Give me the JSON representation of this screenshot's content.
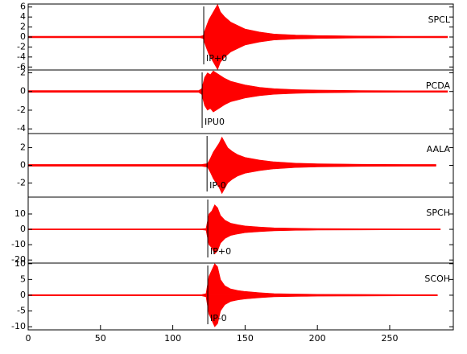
{
  "chart_data": [
    {
      "type": "seismogram",
      "station": "SPCL",
      "pick_label": "IP+0",
      "pick_x": 121.4,
      "color": "#ff0000",
      "ylim": [
        -6.6,
        6.6
      ],
      "yticks": [
        -6,
        -4,
        -2,
        0,
        2,
        4,
        6
      ],
      "x": [
        0,
        60,
        119,
        121,
        123,
        125,
        127,
        129,
        131,
        133,
        136,
        140,
        145,
        150,
        160,
        170,
        185,
        200,
        230,
        260,
        290
      ],
      "values": [
        0.15,
        0.15,
        0.15,
        0.3,
        2,
        3.5,
        4.5,
        5.5,
        6.5,
        5,
        4,
        3,
        2.3,
        1.6,
        1,
        0.6,
        0.4,
        0.3,
        0.2,
        0.15,
        0.15
      ]
    },
    {
      "type": "seismogram",
      "station": "PCDA",
      "pick_label": "IPU0",
      "pick_x": 120.3,
      "color": "#ff0000",
      "ylim": [
        -4.5,
        2.3
      ],
      "yticks": [
        -4,
        -2,
        0,
        2
      ],
      "x": [
        0,
        60,
        118,
        120,
        122,
        124,
        126,
        128,
        130,
        133,
        136,
        140,
        145,
        150,
        160,
        170,
        185,
        200,
        230,
        260,
        290
      ],
      "values": [
        0.1,
        0.1,
        0.1,
        0.3,
        1.5,
        2,
        1.8,
        2.2,
        2,
        1.7,
        1.4,
        1.1,
        0.9,
        0.7,
        0.45,
        0.3,
        0.2,
        0.15,
        0.1,
        0.08,
        0.08
      ]
    },
    {
      "type": "seismogram",
      "station": "AALA",
      "pick_label": "IP-0",
      "pick_x": 123.7,
      "color": "#ff0000",
      "ylim": [
        -3.6,
        3.6
      ],
      "yticks": [
        -2,
        0,
        2
      ],
      "x": [
        0,
        60,
        120,
        124,
        126,
        128,
        130,
        132,
        134,
        136,
        138,
        141,
        145,
        150,
        160,
        170,
        185,
        200,
        230,
        260,
        282
      ],
      "values": [
        0.1,
        0.1,
        0.1,
        0.2,
        0.8,
        1.5,
        2,
        2.5,
        3.2,
        2.6,
        2,
        1.6,
        1.2,
        0.9,
        0.6,
        0.4,
        0.25,
        0.18,
        0.12,
        0.1,
        0.1
      ]
    },
    {
      "type": "seismogram",
      "station": "SPCH",
      "pick_label": "IP+0",
      "pick_x": 124.2,
      "color": "#ff0000",
      "ylim": [
        -22,
        21
      ],
      "yticks": [
        -20,
        -10,
        0,
        10
      ],
      "x": [
        0,
        60,
        120,
        123,
        125,
        127,
        129,
        131,
        133,
        136,
        140,
        145,
        150,
        160,
        170,
        185,
        200,
        230,
        260,
        285
      ],
      "values": [
        0.3,
        0.3,
        0.3,
        0.6,
        10,
        12,
        16,
        14,
        9,
        6,
        4,
        3,
        2.2,
        1.5,
        1,
        0.7,
        0.5,
        0.4,
        0.3,
        0.3
      ]
    },
    {
      "type": "seismogram",
      "station": "SCOH",
      "pick_label": "IP-0",
      "pick_x": 124.2,
      "color": "#ff0000",
      "ylim": [
        -11,
        10.2
      ],
      "yticks": [
        -10,
        -5,
        0,
        5,
        10
      ],
      "x": [
        0,
        60,
        120,
        123,
        125,
        127,
        129,
        131,
        133,
        136,
        140,
        145,
        150,
        160,
        170,
        185,
        200,
        230,
        260,
        283
      ],
      "values": [
        0.2,
        0.2,
        0.2,
        0.5,
        6,
        8,
        10,
        9,
        5,
        3,
        2,
        1.5,
        1.2,
        0.8,
        0.5,
        0.4,
        0.3,
        0.25,
        0.2,
        0.2
      ],
      "xlim": [
        0,
        294
      ],
      "xticks": [
        0,
        50,
        100,
        150,
        200,
        250
      ]
    }
  ]
}
